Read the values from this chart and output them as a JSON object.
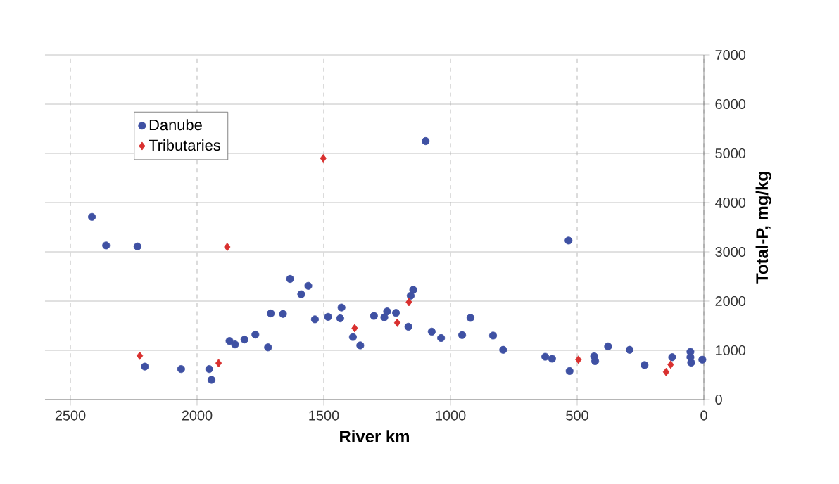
{
  "chart_data": {
    "type": "scatter",
    "xlabel": "River km",
    "ylabel": "Total-P, mg/kg",
    "xlim": [
      2600,
      0
    ],
    "ylim": [
      0,
      7000
    ],
    "xticks": [
      2500,
      2000,
      1500,
      1000,
      500,
      0
    ],
    "yticks": [
      0,
      1000,
      2000,
      3000,
      4000,
      5000,
      6000,
      7000
    ],
    "grid": true,
    "legend": "top left",
    "series": [
      {
        "name": "Danube",
        "color": "#3f51a3",
        "marker": "circle",
        "x": [
          2415,
          2359,
          2235,
          2206,
          2063,
          1952,
          1943,
          1872,
          1850,
          1813,
          1770,
          1720,
          1709,
          1661,
          1633,
          1589,
          1561,
          1535,
          1483,
          1435,
          1430,
          1385,
          1356,
          1302,
          1261,
          1250,
          1215,
          1166,
          1157,
          1147,
          1098,
          1074,
          1037,
          954,
          921,
          832,
          792,
          626,
          599,
          534,
          530,
          433,
          429,
          378,
          293,
          234,
          125,
          53,
          53,
          50,
          6
        ],
        "values": [
          3710,
          3130,
          3110,
          670,
          620,
          620,
          400,
          1190,
          1120,
          1220,
          1320,
          1060,
          1750,
          1740,
          2450,
          2140,
          2310,
          1630,
          1680,
          1650,
          1870,
          1270,
          1100,
          1700,
          1670,
          1790,
          1760,
          1480,
          2110,
          2230,
          5250,
          1380,
          1250,
          1310,
          1660,
          1300,
          1010,
          870,
          830,
          3230,
          580,
          880,
          780,
          1080,
          1010,
          700,
          860,
          970,
          860,
          750,
          810
        ]
      },
      {
        "name": "Tributaries",
        "color": "#d9302f",
        "marker": "diamond",
        "x": [
          2226,
          1915,
          1881,
          1502,
          1378,
          1210,
          1164,
          495,
          149,
          131
        ],
        "values": [
          890,
          740,
          3100,
          4900,
          1450,
          1560,
          1980,
          810,
          560,
          710
        ]
      }
    ]
  }
}
